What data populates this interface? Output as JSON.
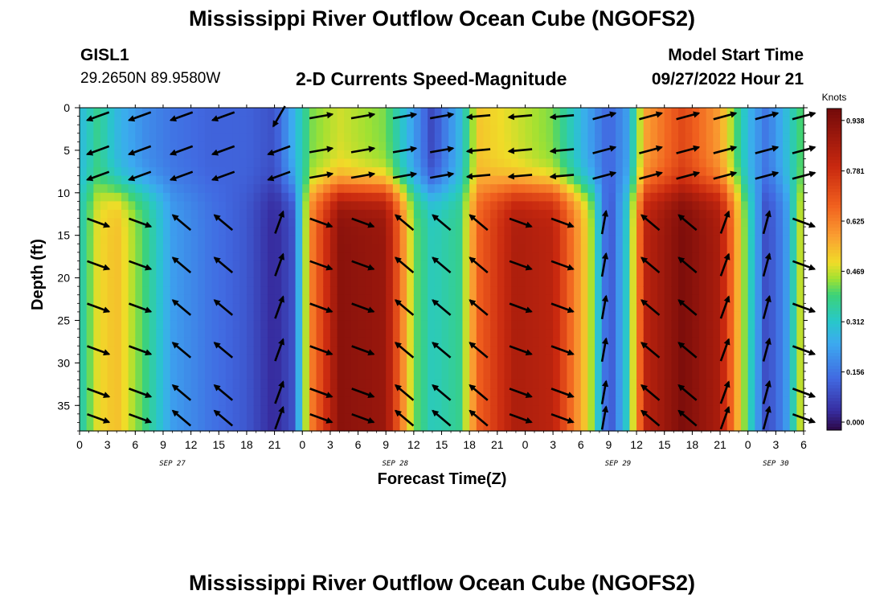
{
  "header": {
    "title_top": "Mississippi River Outflow Ocean Cube (NGOFS2)",
    "title_bottom": "Mississippi River Outflow Ocean Cube (NGOFS2)",
    "station_id": "GISL1",
    "station_coords": "29.2650N  89.9580W",
    "model_start_label": "Model Start Time",
    "model_start_value": "09/27/2022 Hour 21"
  },
  "chart_data": {
    "type": "heatmap",
    "title": "2-D Currents Speed-Magnitude",
    "xlabel": "Forecast Time(Z)",
    "ylabel": "Depth (ft)",
    "x_tick_labels": [
      "0",
      "3",
      "6",
      "9",
      "12",
      "15",
      "18",
      "21",
      "0",
      "3",
      "6",
      "9",
      "12",
      "15",
      "18",
      "21",
      "0",
      "3",
      "6",
      "9",
      "12",
      "15",
      "18",
      "21",
      "0",
      "3",
      "6"
    ],
    "x_hours_range": [
      0,
      78
    ],
    "date_labels": [
      {
        "label": "SEP 27",
        "hour": 10
      },
      {
        "label": "SEP 28",
        "hour": 34
      },
      {
        "label": "SEP 29",
        "hour": 58
      },
      {
        "label": "SEP 30",
        "hour": 75
      }
    ],
    "y_ticks": [
      0,
      5,
      10,
      15,
      20,
      25,
      30,
      35
    ],
    "ylim": [
      0,
      38
    ],
    "colorbar": {
      "title": "Knots",
      "tick_labels": [
        "0.000",
        "0.156",
        "0.312",
        "0.469",
        "0.625",
        "0.781",
        "0.938"
      ],
      "range": [
        0,
        1.0
      ]
    },
    "arrow_hours": [
      2,
      6.5,
      11,
      15.5,
      21.5,
      26,
      30.5,
      35,
      39,
      43,
      47.5,
      52,
      56.5,
      61.5,
      65.5,
      69.5,
      74,
      78
    ],
    "arrow_depths": [
      1,
      5,
      8,
      13.5,
      18.5,
      23.5,
      28.5,
      33.5,
      36.5
    ],
    "speed_profile": [
      {
        "hour": 0,
        "surface": 0.3,
        "deep": 0.35
      },
      {
        "hour": 2,
        "surface": 0.4,
        "deep": 0.52
      },
      {
        "hour": 4,
        "surface": 0.3,
        "deep": 0.56
      },
      {
        "hour": 7,
        "surface": 0.22,
        "deep": 0.42
      },
      {
        "hour": 10,
        "surface": 0.18,
        "deep": 0.25
      },
      {
        "hour": 14,
        "surface": 0.15,
        "deep": 0.18
      },
      {
        "hour": 18,
        "surface": 0.15,
        "deep": 0.13
      },
      {
        "hour": 21,
        "surface": 0.12,
        "deep": 0.05
      },
      {
        "hour": 23,
        "surface": 0.28,
        "deep": 0.12
      },
      {
        "hour": 25,
        "surface": 0.45,
        "deep": 0.65
      },
      {
        "hour": 28,
        "surface": 0.5,
        "deep": 0.95
      },
      {
        "hour": 33,
        "surface": 0.45,
        "deep": 0.92
      },
      {
        "hour": 36,
        "surface": 0.25,
        "deep": 0.45
      },
      {
        "hour": 38,
        "surface": 0.1,
        "deep": 0.35
      },
      {
        "hour": 41,
        "surface": 0.3,
        "deep": 0.4
      },
      {
        "hour": 43,
        "surface": 0.55,
        "deep": 0.7
      },
      {
        "hour": 47,
        "surface": 0.5,
        "deep": 0.88
      },
      {
        "hour": 51,
        "surface": 0.45,
        "deep": 0.85
      },
      {
        "hour": 55,
        "surface": 0.25,
        "deep": 0.5
      },
      {
        "hour": 57,
        "surface": 0.15,
        "deep": 0.1
      },
      {
        "hour": 59,
        "surface": 0.25,
        "deep": 0.35
      },
      {
        "hour": 61,
        "surface": 0.6,
        "deep": 0.85
      },
      {
        "hour": 65,
        "surface": 0.75,
        "deep": 0.98
      },
      {
        "hour": 69,
        "surface": 0.6,
        "deep": 0.88
      },
      {
        "hour": 72,
        "surface": 0.3,
        "deep": 0.4
      },
      {
        "hour": 74,
        "surface": 0.18,
        "deep": 0.1
      },
      {
        "hour": 76,
        "surface": 0.3,
        "deep": 0.22
      },
      {
        "hour": 78,
        "surface": 0.45,
        "deep": 0.55
      }
    ]
  }
}
